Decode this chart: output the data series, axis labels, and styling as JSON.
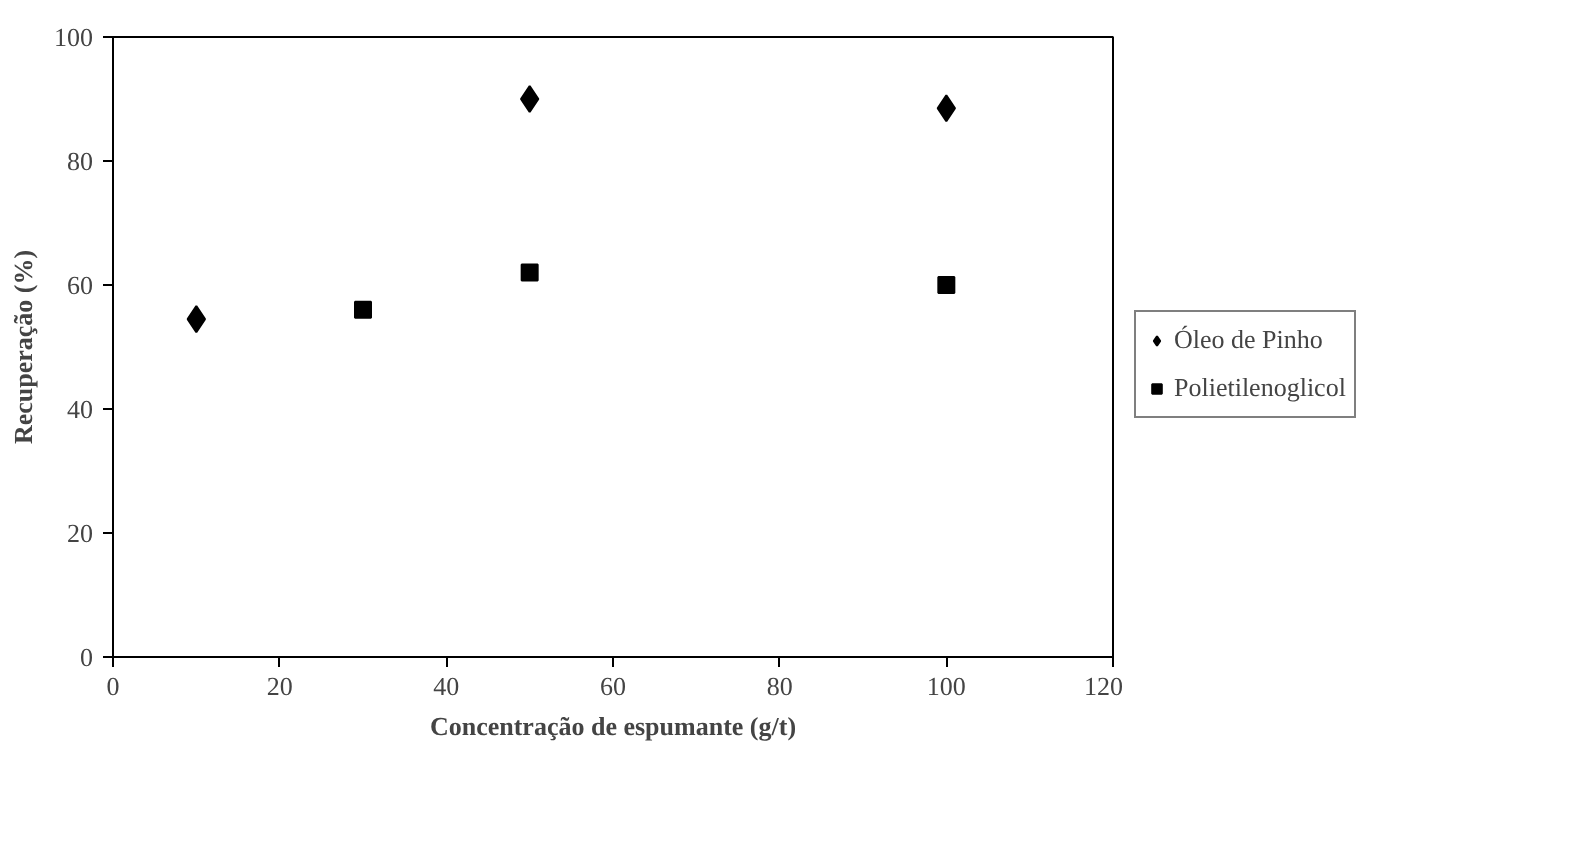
{
  "chart_data": {
    "type": "scatter",
    "xlabel": "Concentração de espumante (g/t)",
    "ylabel": "Recuperação (%)",
    "xlim": [
      0,
      120
    ],
    "xticks": [
      0,
      20,
      40,
      60,
      80,
      100,
      120
    ],
    "ylim": [
      0,
      100
    ],
    "yticks": [
      0,
      20,
      40,
      60,
      80,
      100
    ],
    "grid": false,
    "legend": "right",
    "series": [
      {
        "name": "Óleo de Pinho",
        "color": "#000000",
        "marker": "diamond",
        "x": [
          10,
          50,
          100
        ],
        "values": [
          54.5,
          90,
          88.5
        ]
      },
      {
        "name": "Polietilenoglicol",
        "color": "#000000",
        "marker": "square",
        "x": [
          30,
          50,
          100
        ],
        "values": [
          56,
          62,
          60
        ]
      }
    ]
  }
}
